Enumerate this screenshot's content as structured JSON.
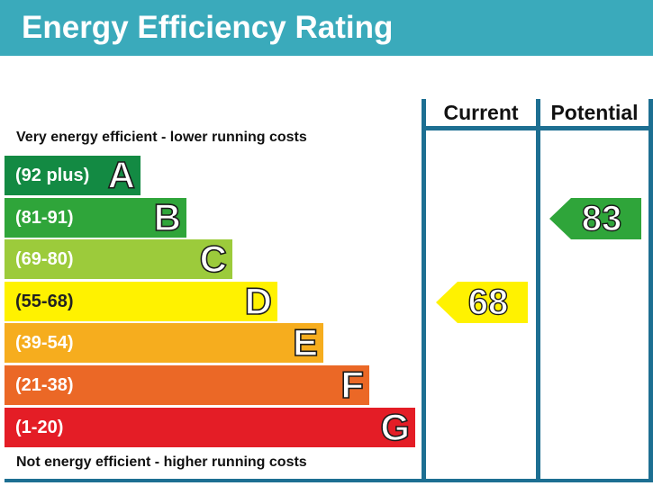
{
  "header": {
    "title": "Energy Efficiency Rating"
  },
  "columns": {
    "current": "Current",
    "potential": "Potential"
  },
  "notes": {
    "top": "Very energy efficient - lower running costs",
    "bottom": "Not energy efficient - higher running costs"
  },
  "chart_data": {
    "type": "bar",
    "title": "Energy Efficiency Rating",
    "orientation": "horizontal",
    "categories": [
      "A",
      "B",
      "C",
      "D",
      "E",
      "F",
      "G"
    ],
    "bands": [
      {
        "letter": "A",
        "range": "(92 plus)",
        "color": "#138a43"
      },
      {
        "letter": "B",
        "range": "(81-91)",
        "color": "#2fa53a"
      },
      {
        "letter": "C",
        "range": "(69-80)",
        "color": "#9ccb3b"
      },
      {
        "letter": "D",
        "range": "(55-68)",
        "color": "#fff200"
      },
      {
        "letter": "E",
        "range": "(39-54)",
        "color": "#f6ad1e"
      },
      {
        "letter": "F",
        "range": "(21-38)",
        "color": "#eb6826"
      },
      {
        "letter": "G",
        "range": "(1-20)",
        "color": "#e41d26"
      }
    ],
    "current": {
      "value": 68,
      "band": "D",
      "color": "#fff200"
    },
    "potential": {
      "value": 83,
      "band": "B",
      "color": "#2fa53a"
    }
  }
}
